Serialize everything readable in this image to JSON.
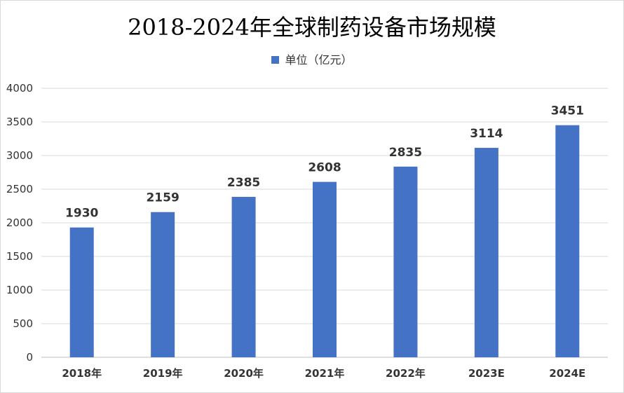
{
  "chart_data": {
    "type": "bar",
    "title": "2018-2024年全球制药设备市场规模",
    "categories": [
      "2018年",
      "2019年",
      "2020年",
      "2021年",
      "2022年",
      "2023E",
      "2024E"
    ],
    "series": [
      {
        "name": "单位（亿元）",
        "values": [
          1930,
          2159,
          2385,
          2608,
          2835,
          3114,
          3451
        ]
      }
    ],
    "ylim": [
      0,
      4000
    ],
    "yticks": [
      0,
      500,
      1000,
      1500,
      2000,
      2500,
      3000,
      3500,
      4000
    ],
    "grid": true,
    "legend_position": "top",
    "bar_color": "#4472c4"
  }
}
